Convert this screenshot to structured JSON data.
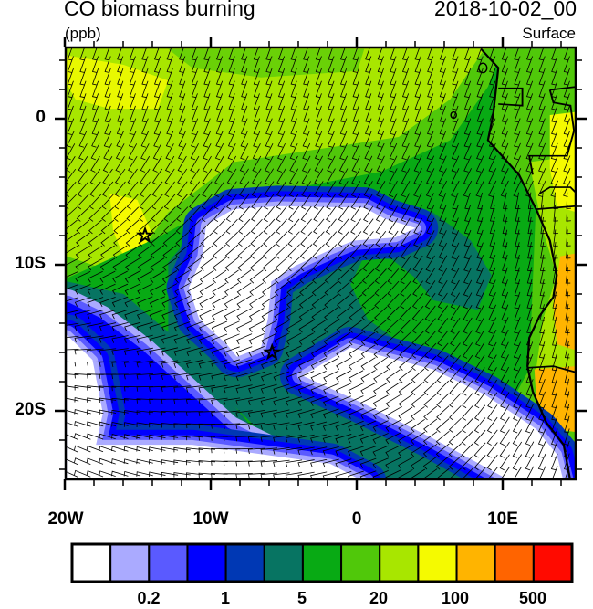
{
  "header": {
    "title": "CO biomass burning",
    "units": "(ppb)",
    "date": "2018-10-02_00",
    "level": "Surface"
  },
  "map": {
    "lon_range": [
      -20,
      15
    ],
    "lat_range": [
      -25,
      5
    ],
    "x_tick_labels": [
      "20W",
      "10W",
      "0",
      "10E"
    ],
    "y_tick_labels": [
      "0",
      "10S",
      "20S"
    ],
    "overlay": "wind barbs",
    "markers": [
      {
        "type": "star",
        "lon": -14.5,
        "lat": -8
      },
      {
        "type": "star",
        "lon": -5.8,
        "lat": -16
      }
    ]
  },
  "colorbar": {
    "colors": [
      "#ffffff",
      "#aaaaff",
      "#5a5aff",
      "#0000ff",
      "#0038b4",
      "#077462",
      "#08aa14",
      "#50c80a",
      "#a8e600",
      "#f5fa00",
      "#ffb400",
      "#ff6400",
      "#ff0a00"
    ],
    "labels": [
      "0.2",
      "1",
      "5",
      "20",
      "100",
      "500"
    ]
  }
}
